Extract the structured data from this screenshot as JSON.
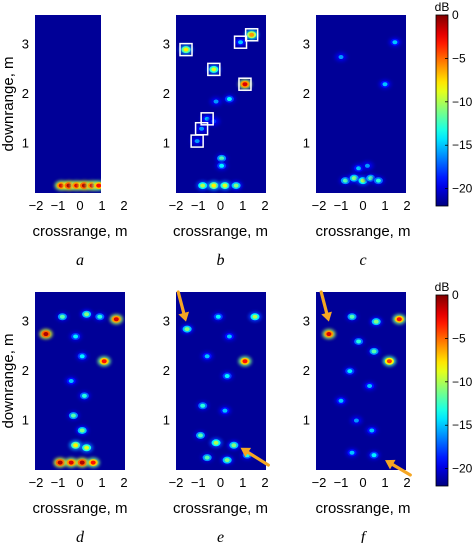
{
  "colorbar": {
    "unit": "dB",
    "ticks": [
      0,
      -5,
      -10,
      -15,
      -20
    ],
    "tick_labels": [
      "0",
      "−5",
      "−10",
      "−15",
      "−20"
    ],
    "range": [
      -22,
      0
    ]
  },
  "chart_data": [
    {
      "type": "heatmap",
      "panel_label": "a",
      "xlabel": "crossrange, m",
      "ylabel": "downrange, m",
      "xlim": [
        -2,
        2
      ],
      "ylim": [
        0,
        3.6
      ],
      "x_ticks": [
        -2,
        -1,
        0,
        1,
        2
      ],
      "y_ticks": [
        1,
        2,
        3
      ],
      "x_tick_labels": [
        "−2",
        "−1",
        "0",
        "1",
        "2"
      ],
      "y_tick_labels": [
        "1",
        "2",
        "3"
      ],
      "show_ylabel": true,
      "hotspots": [
        {
          "x": -0.85,
          "y": 0.15,
          "level": -2
        },
        {
          "x": -0.5,
          "y": 0.15,
          "level": -1
        },
        {
          "x": -0.15,
          "y": 0.15,
          "level": -2
        },
        {
          "x": 0.2,
          "y": 0.15,
          "level": -1
        },
        {
          "x": 0.55,
          "y": 0.15,
          "level": -2
        },
        {
          "x": 0.85,
          "y": 0.15,
          "level": -3
        }
      ],
      "boxes": [],
      "arrows": []
    },
    {
      "type": "heatmap",
      "panel_label": "b",
      "xlabel": "crossrange, m",
      "ylabel": "",
      "xlim": [
        -2,
        2
      ],
      "ylim": [
        0,
        3.6
      ],
      "x_ticks": [
        -2,
        -1,
        0,
        1,
        2
      ],
      "y_ticks": [
        1,
        2,
        3
      ],
      "x_tick_labels": [
        "−2",
        "−1",
        "0",
        "1",
        "2"
      ],
      "y_tick_labels": [
        "1",
        "2",
        "3"
      ],
      "show_ylabel": false,
      "hotspots": [
        {
          "x": -1.55,
          "y": 2.9,
          "level": -8
        },
        {
          "x": 1.4,
          "y": 3.2,
          "level": -6
        },
        {
          "x": 0.9,
          "y": 3.05,
          "level": -15
        },
        {
          "x": -0.3,
          "y": 2.5,
          "level": -9
        },
        {
          "x": 1.1,
          "y": 2.2,
          "level": -2
        },
        {
          "x": 0.4,
          "y": 1.9,
          "level": -14
        },
        {
          "x": -0.2,
          "y": 1.85,
          "level": -16
        },
        {
          "x": -0.6,
          "y": 1.5,
          "level": -15
        },
        {
          "x": -0.85,
          "y": 1.3,
          "level": -16
        },
        {
          "x": -1.05,
          "y": 1.05,
          "level": -16
        },
        {
          "x": -0.3,
          "y": 1.45,
          "level": -18
        },
        {
          "x": 0.05,
          "y": 0.7,
          "level": -12
        },
        {
          "x": 0.05,
          "y": 0.55,
          "level": -14
        },
        {
          "x": -0.8,
          "y": 0.15,
          "level": -10
        },
        {
          "x": -0.3,
          "y": 0.15,
          "level": -8
        },
        {
          "x": 0.2,
          "y": 0.15,
          "level": -9
        },
        {
          "x": 0.7,
          "y": 0.15,
          "level": -11
        }
      ],
      "boxes": [
        {
          "x": -1.55,
          "y": 2.9
        },
        {
          "x": 1.4,
          "y": 3.2
        },
        {
          "x": 0.9,
          "y": 3.05
        },
        {
          "x": -0.3,
          "y": 2.5
        },
        {
          "x": 1.1,
          "y": 2.2
        },
        {
          "x": -0.6,
          "y": 1.5
        },
        {
          "x": -0.85,
          "y": 1.3
        },
        {
          "x": -1.05,
          "y": 1.05
        }
      ],
      "arrows": []
    },
    {
      "type": "heatmap",
      "panel_label": "c",
      "xlabel": "crossrange, m",
      "ylabel": "",
      "xlim": [
        -2,
        2
      ],
      "ylim": [
        0,
        3.6
      ],
      "x_ticks": [
        -2,
        -1,
        0,
        1,
        2
      ],
      "y_ticks": [
        1,
        2,
        3
      ],
      "x_tick_labels": [
        "−2",
        "−1",
        "0",
        "1",
        "2"
      ],
      "y_tick_labels": [
        "1",
        "2",
        "3"
      ],
      "show_ylabel": false,
      "hotspots": [
        {
          "x": -1.0,
          "y": 2.75,
          "level": -16
        },
        {
          "x": 1.45,
          "y": 3.05,
          "level": -15
        },
        {
          "x": 1.0,
          "y": 2.2,
          "level": -15
        },
        {
          "x": -0.8,
          "y": 0.25,
          "level": -12
        },
        {
          "x": -0.4,
          "y": 0.3,
          "level": -11
        },
        {
          "x": 0.0,
          "y": 0.25,
          "level": -10
        },
        {
          "x": 0.35,
          "y": 0.3,
          "level": -12
        },
        {
          "x": 0.7,
          "y": 0.25,
          "level": -13
        },
        {
          "x": -0.2,
          "y": 0.5,
          "level": -15
        },
        {
          "x": 0.2,
          "y": 0.55,
          "level": -16
        }
      ],
      "boxes": [],
      "arrows": []
    },
    {
      "type": "heatmap",
      "panel_label": "d",
      "xlabel": "crossrange, m",
      "ylabel": "downrange, m",
      "xlim": [
        -2,
        2
      ],
      "ylim": [
        0,
        3.6
      ],
      "x_ticks": [
        -2,
        -1,
        0,
        1,
        2
      ],
      "y_ticks": [
        1,
        2,
        3
      ],
      "x_tick_labels": [
        "−2",
        "−1",
        "0",
        "1",
        "2"
      ],
      "y_tick_labels": [
        "1",
        "2",
        "3"
      ],
      "show_ylabel": true,
      "hotspots": [
        {
          "x": -1.55,
          "y": 2.75,
          "level": -1
        },
        {
          "x": 1.65,
          "y": 3.05,
          "level": -2
        },
        {
          "x": 1.1,
          "y": 2.2,
          "level": -3
        },
        {
          "x": -0.8,
          "y": 3.1,
          "level": -12
        },
        {
          "x": 0.3,
          "y": 3.15,
          "level": -11
        },
        {
          "x": 0.9,
          "y": 3.1,
          "level": -13
        },
        {
          "x": -0.2,
          "y": 2.7,
          "level": -14
        },
        {
          "x": 0.1,
          "y": 2.3,
          "level": -14
        },
        {
          "x": -0.4,
          "y": 1.8,
          "level": -15
        },
        {
          "x": 0.2,
          "y": 1.5,
          "level": -13
        },
        {
          "x": -0.3,
          "y": 1.1,
          "level": -12
        },
        {
          "x": 0.1,
          "y": 0.8,
          "level": -11
        },
        {
          "x": -0.2,
          "y": 0.5,
          "level": -8
        },
        {
          "x": 0.3,
          "y": 0.45,
          "level": -9
        },
        {
          "x": -0.9,
          "y": 0.15,
          "level": -1
        },
        {
          "x": -0.4,
          "y": 0.15,
          "level": -2
        },
        {
          "x": 0.1,
          "y": 0.15,
          "level": -1
        },
        {
          "x": 0.6,
          "y": 0.15,
          "level": -3
        }
      ],
      "boxes": [],
      "arrows": []
    },
    {
      "type": "heatmap",
      "panel_label": "e",
      "xlabel": "crossrange, m",
      "ylabel": "",
      "xlim": [
        -2,
        2
      ],
      "ylim": [
        0,
        3.6
      ],
      "x_ticks": [
        -2,
        -1,
        0,
        1,
        2
      ],
      "y_ticks": [
        1,
        2,
        3
      ],
      "x_tick_labels": [
        "−2",
        "−1",
        "0",
        "1",
        "2"
      ],
      "y_tick_labels": [
        "1",
        "2",
        "3"
      ],
      "show_ylabel": false,
      "hotspots": [
        {
          "x": -1.5,
          "y": 2.85,
          "level": -11
        },
        {
          "x": 1.55,
          "y": 3.1,
          "level": -10
        },
        {
          "x": 1.1,
          "y": 2.2,
          "level": -3
        },
        {
          "x": -0.1,
          "y": 3.1,
          "level": -14
        },
        {
          "x": 0.4,
          "y": 2.7,
          "level": -15
        },
        {
          "x": -0.6,
          "y": 2.3,
          "level": -15
        },
        {
          "x": 0.3,
          "y": 1.9,
          "level": -14
        },
        {
          "x": -0.8,
          "y": 1.3,
          "level": -13
        },
        {
          "x": 0.2,
          "y": 1.2,
          "level": -15
        },
        {
          "x": -0.9,
          "y": 0.7,
          "level": -12
        },
        {
          "x": -0.2,
          "y": 0.55,
          "level": -10
        },
        {
          "x": 0.6,
          "y": 0.5,
          "level": -11
        },
        {
          "x": -0.6,
          "y": 0.25,
          "level": -12
        },
        {
          "x": 0.3,
          "y": 0.2,
          "level": -11
        },
        {
          "x": 1.2,
          "y": 0.3,
          "level": -13
        }
      ],
      "boxes": [],
      "arrows": [
        {
          "from": [
            -1.9,
            3.6
          ],
          "to": [
            -1.55,
            3.0
          ]
        },
        {
          "from": [
            2.15,
            0.1
          ],
          "to": [
            0.9,
            0.45
          ]
        }
      ]
    },
    {
      "type": "heatmap",
      "panel_label": "f",
      "xlabel": "crossrange, m",
      "ylabel": "",
      "xlim": [
        -2,
        2
      ],
      "ylim": [
        0,
        3.6
      ],
      "x_ticks": [
        -2,
        -1,
        0,
        1,
        2
      ],
      "y_ticks": [
        1,
        2,
        3
      ],
      "x_tick_labels": [
        "−2",
        "−1",
        "0",
        "1",
        "2"
      ],
      "y_tick_labels": [
        "1",
        "2",
        "3"
      ],
      "show_ylabel": false,
      "hotspots": [
        {
          "x": -1.55,
          "y": 2.75,
          "level": -2
        },
        {
          "x": 1.65,
          "y": 3.05,
          "level": -3
        },
        {
          "x": 1.2,
          "y": 2.2,
          "level": -4
        },
        {
          "x": -0.5,
          "y": 3.1,
          "level": -12
        },
        {
          "x": 0.6,
          "y": 3.0,
          "level": -11
        },
        {
          "x": -0.2,
          "y": 2.6,
          "level": -13
        },
        {
          "x": 0.5,
          "y": 2.4,
          "level": -12
        },
        {
          "x": -0.6,
          "y": 2.0,
          "level": -14
        },
        {
          "x": 0.3,
          "y": 1.7,
          "level": -15
        },
        {
          "x": -1.0,
          "y": 1.4,
          "level": -15
        },
        {
          "x": -0.3,
          "y": 1.0,
          "level": -16
        },
        {
          "x": 0.4,
          "y": 0.8,
          "level": -15
        },
        {
          "x": -0.5,
          "y": 0.35,
          "level": -15
        },
        {
          "x": 0.5,
          "y": 0.3,
          "level": -14
        }
      ],
      "boxes": [],
      "arrows": [
        {
          "from": [
            -1.9,
            3.6
          ],
          "to": [
            -1.55,
            3.0
          ]
        },
        {
          "from": [
            2.15,
            -0.1
          ],
          "to": [
            1.0,
            0.2
          ]
        }
      ]
    }
  ]
}
